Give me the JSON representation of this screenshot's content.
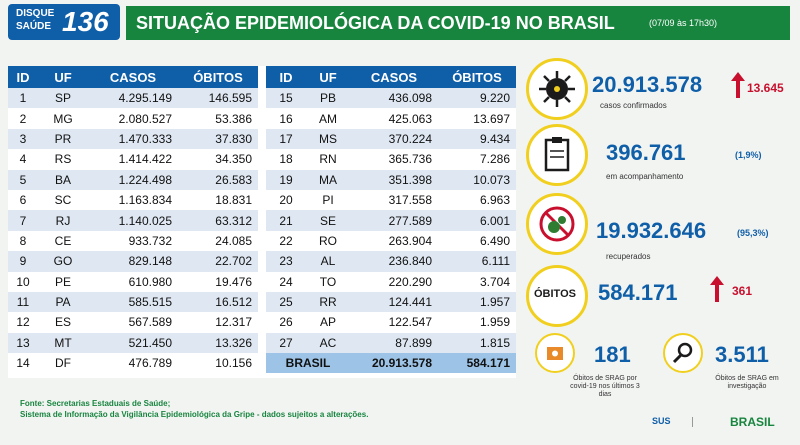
{
  "header": {
    "logo_line1": "DISQUE",
    "logo_line2": "SAÚDE",
    "logo_number": "136",
    "title": "SITUAÇÃO EPIDEMIOLÓGICA DA COVID-19 NO BRASIL",
    "date": "(07/09 às 17h30)"
  },
  "table": {
    "headers": [
      "ID",
      "UF",
      "CASOS",
      "ÓBITOS"
    ],
    "left": [
      [
        "1",
        "SP",
        "4.295.149",
        "146.595"
      ],
      [
        "2",
        "MG",
        "2.080.527",
        "53.386"
      ],
      [
        "3",
        "PR",
        "1.470.333",
        "37.830"
      ],
      [
        "4",
        "RS",
        "1.414.422",
        "34.350"
      ],
      [
        "5",
        "BA",
        "1.224.498",
        "26.583"
      ],
      [
        "6",
        "SC",
        "1.163.834",
        "18.831"
      ],
      [
        "7",
        "RJ",
        "1.140.025",
        "63.312"
      ],
      [
        "8",
        "CE",
        "933.732",
        "24.085"
      ],
      [
        "9",
        "GO",
        "829.148",
        "22.702"
      ],
      [
        "10",
        "PE",
        "610.980",
        "19.476"
      ],
      [
        "11",
        "PA",
        "585.515",
        "16.512"
      ],
      [
        "12",
        "ES",
        "567.589",
        "12.317"
      ],
      [
        "13",
        "MT",
        "521.450",
        "13.326"
      ],
      [
        "14",
        "DF",
        "476.789",
        "10.156"
      ]
    ],
    "right": [
      [
        "15",
        "PB",
        "436.098",
        "9.220"
      ],
      [
        "16",
        "AM",
        "425.063",
        "13.697"
      ],
      [
        "17",
        "MS",
        "370.224",
        "9.434"
      ],
      [
        "18",
        "RN",
        "365.736",
        "7.286"
      ],
      [
        "19",
        "MA",
        "351.398",
        "10.073"
      ],
      [
        "20",
        "PI",
        "317.558",
        "6.963"
      ],
      [
        "21",
        "SE",
        "277.589",
        "6.001"
      ],
      [
        "22",
        "RO",
        "263.904",
        "6.490"
      ],
      [
        "23",
        "AL",
        "236.840",
        "6.111"
      ],
      [
        "24",
        "TO",
        "220.290",
        "3.704"
      ],
      [
        "25",
        "RR",
        "124.441",
        "1.957"
      ],
      [
        "26",
        "AP",
        "122.547",
        "1.959"
      ],
      [
        "27",
        "AC",
        "87.899",
        "1.815"
      ]
    ],
    "total_label": "BRASIL",
    "total_cases": "20.913.578",
    "total_deaths": "584.171"
  },
  "stats": {
    "confirmed": "20.913.578",
    "confirmed_new": "13.645",
    "confirmed_label": "casos confirmados",
    "monitoring": "396.761",
    "monitoring_pct": "(1,9%)",
    "monitoring_label": "em acompanhamento",
    "recovered": "19.932.646",
    "recovered_pct": "(95,3%)",
    "recovered_label": "recuperados",
    "deaths_label": "ÓBITOS",
    "deaths": "584.171",
    "deaths_new": "361",
    "srag_deaths": "181",
    "srag_deaths_label": "Óbitos de SRAG por covid-19 nos últimos 3 dias",
    "srag_investigation": "3.511",
    "srag_investigation_label": "Óbitos de SRAG em investigação"
  },
  "footer": {
    "line1": "Fonte: Secretarias Estaduais de Saúde;",
    "line2": "Sistema de Informação da Vigilância Epidemiológica da Gripe - dados sujeitos a alterações."
  },
  "brand": {
    "sus": "SUS",
    "brasil": "BRASIL"
  },
  "colors": {
    "blue": "#0f5ea8",
    "green": "#18853f",
    "yellow": "#f1cf1f",
    "red": "#c8102e"
  }
}
